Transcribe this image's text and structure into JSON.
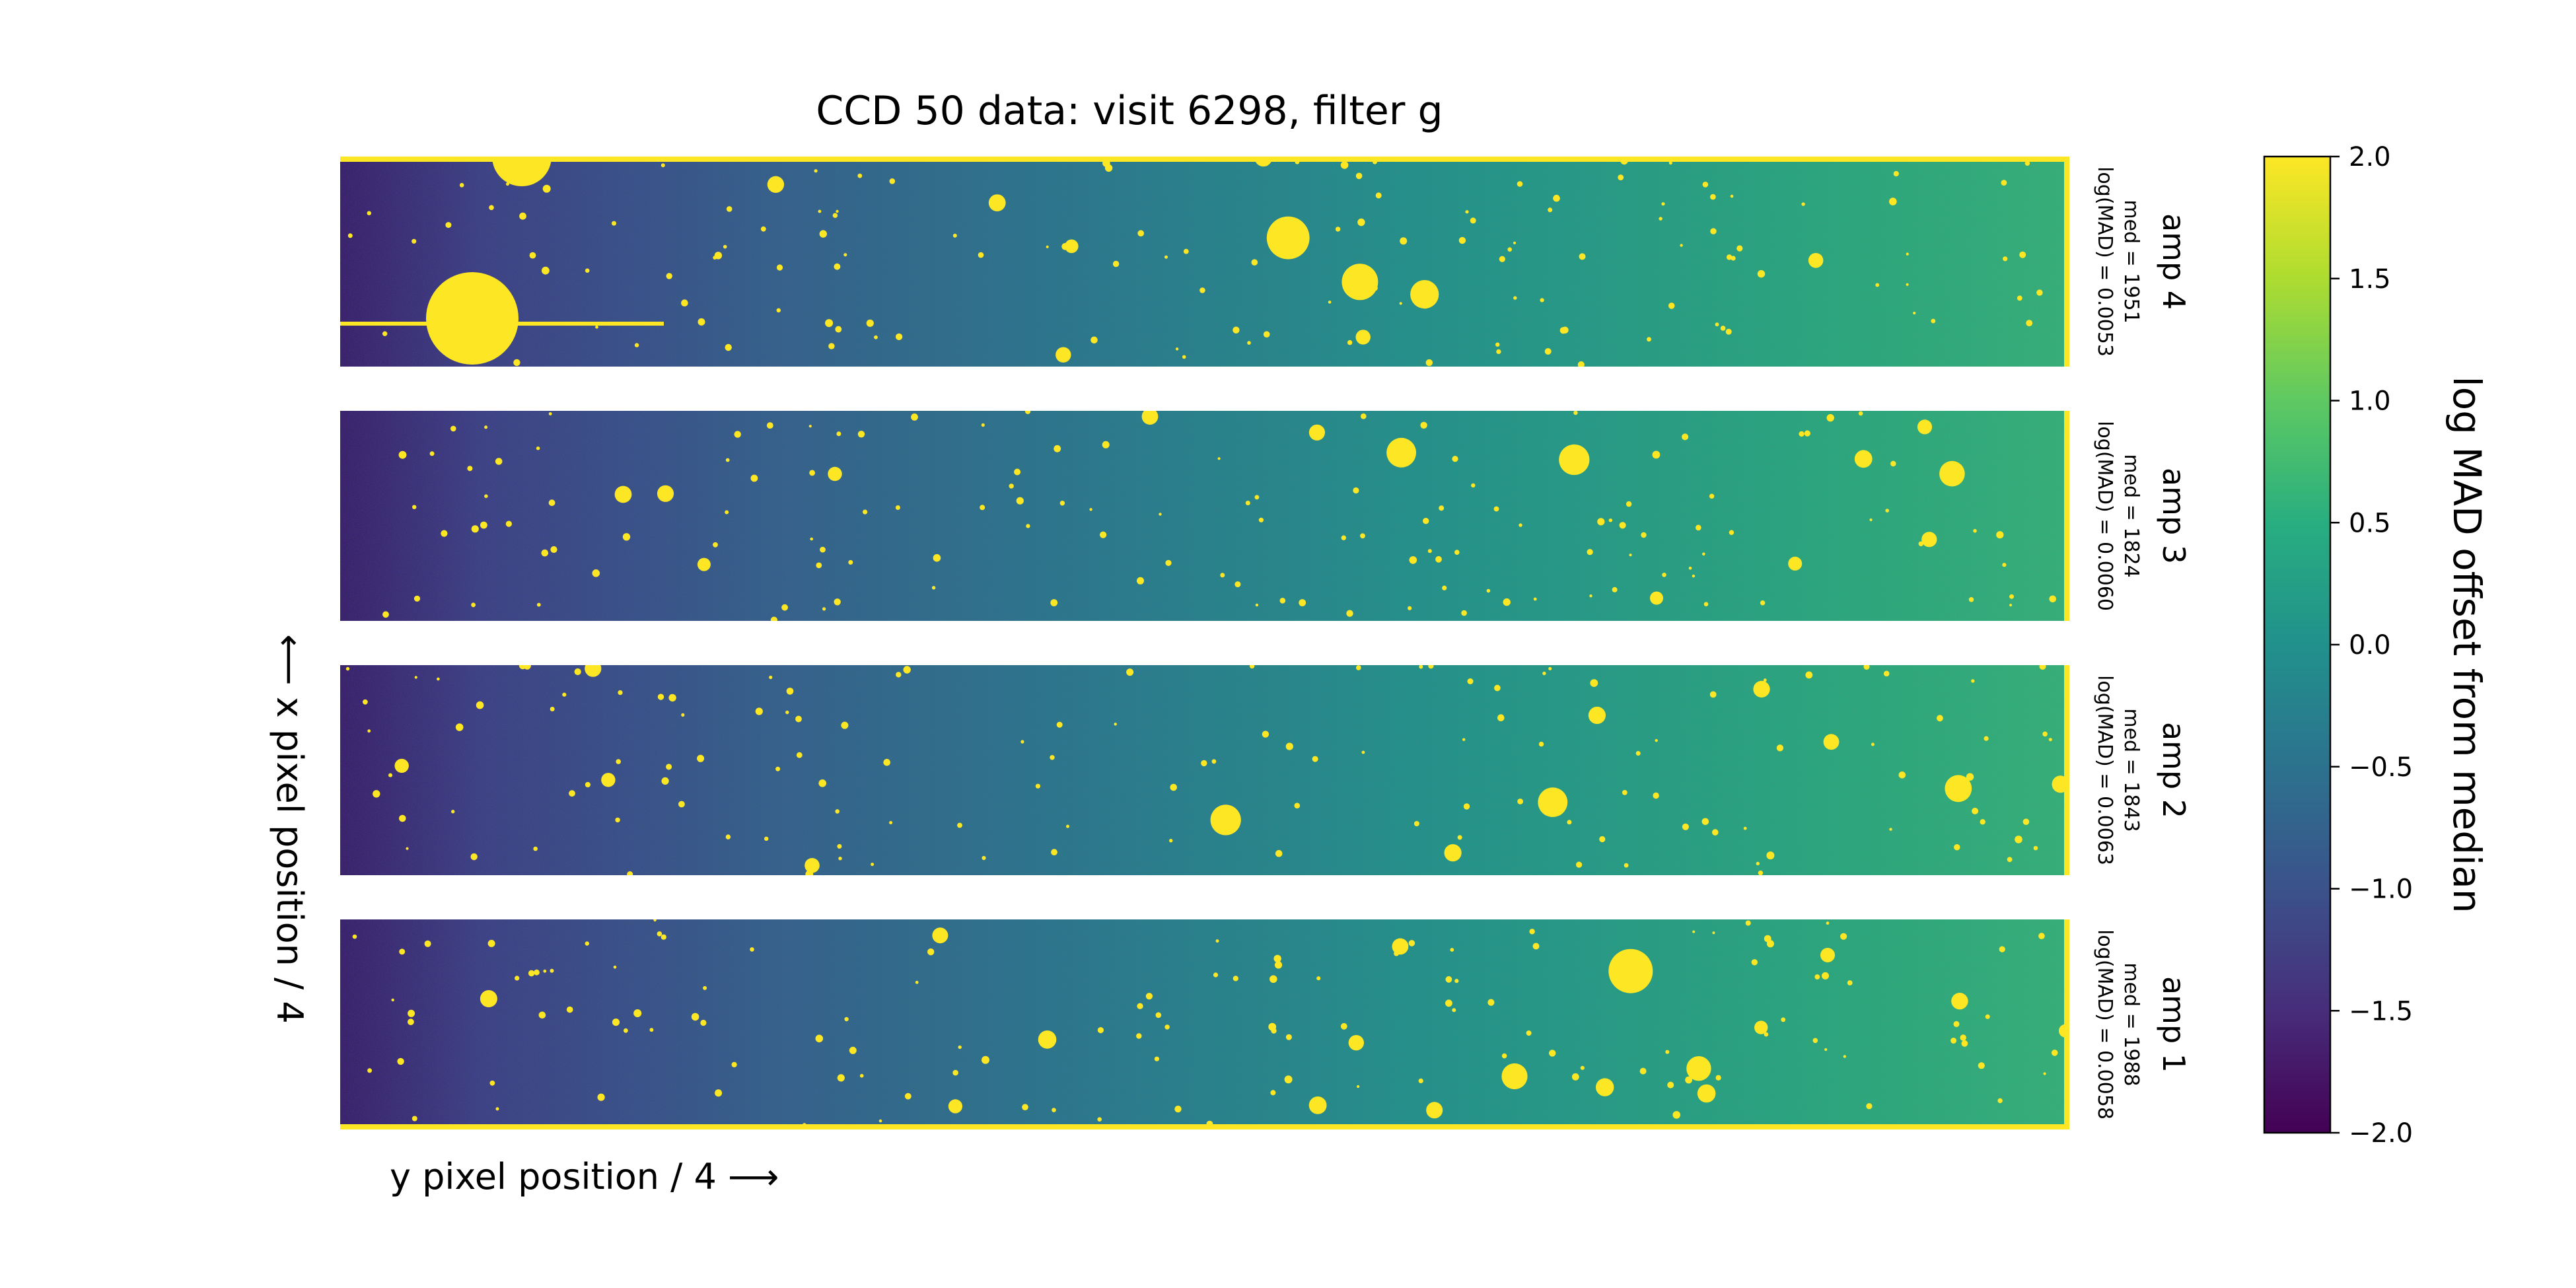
{
  "chart_data": {
    "type": "heatmap",
    "title": "CCD 50 data: visit 6298, filter g",
    "xlabel": "y pixel position / 4 ⟶",
    "ylabel": "⟵ x pixel position / 4",
    "colormap": "viridis",
    "colorbar": {
      "label": "log MAD offset from median",
      "range": [
        -2.0,
        2.0
      ],
      "ticks": [
        -2.0,
        -1.5,
        -1.0,
        -0.5,
        0.0,
        0.5,
        1.0,
        1.5,
        2.0
      ],
      "tick_labels": [
        "−2.0",
        "−1.5",
        "−1.0",
        "−0.5",
        "0.0",
        "0.5",
        "1.0",
        "1.5",
        "2.0"
      ]
    },
    "panels": [
      {
        "name": "amp 4",
        "med": "med = 1951",
        "logmad": "log(MAD) = 0.0053",
        "bright_corner": "left"
      },
      {
        "name": "amp 3",
        "med": "med = 1824",
        "logmad": "log(MAD) = 0.0060",
        "bright_corner": "none"
      },
      {
        "name": "amp 2",
        "med": "med = 1843",
        "logmad": "log(MAD) = 0.0063",
        "bright_corner": "none"
      },
      {
        "name": "amp 1",
        "med": "med = 1988",
        "logmad": "log(MAD) = 0.0058",
        "bright_corner": "none"
      }
    ],
    "colors": {
      "viridis_low": "#440154",
      "viridis_mid": "#21918c",
      "viridis_high": "#fde725"
    }
  }
}
